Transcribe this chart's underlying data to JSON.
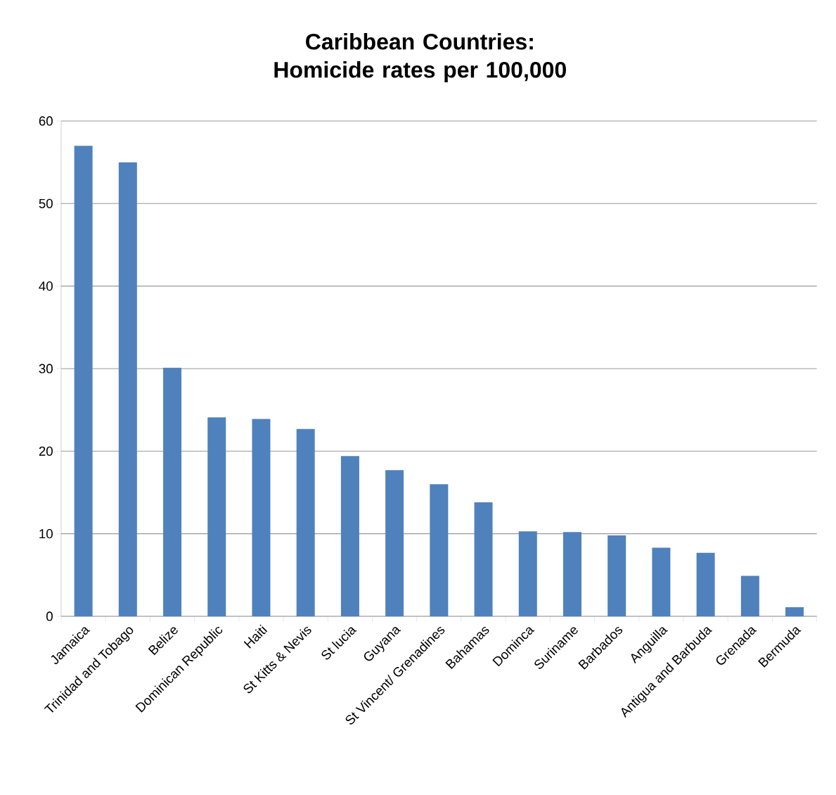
{
  "chart_data": {
    "type": "bar",
    "title": "Caribbean Countries: Homicide rates per 100,000",
    "categories": [
      "Jamaica",
      "Trinidad and Tobago",
      "Belize",
      "Dominican Republic",
      "Haiti",
      "St Kitts & Nevis",
      "St lucia",
      "Guyana",
      "St Vincent/ Grenadines",
      "Bahamas",
      "Dominca",
      "Suriname",
      "Barbados",
      "Anguilla",
      "Antigua and Barbuda",
      "Grenada",
      "Bermuda"
    ],
    "values": [
      57,
      55,
      30.1,
      24.1,
      23.9,
      22.7,
      19.4,
      17.7,
      16,
      13.8,
      10.3,
      10.2,
      9.8,
      8.3,
      7.7,
      4.9,
      1.1
    ],
    "color": "#4f81bd",
    "ylim": [
      0,
      60
    ],
    "yticks": [
      0,
      10,
      20,
      30,
      40,
      50,
      60
    ],
    "grid": "y"
  }
}
